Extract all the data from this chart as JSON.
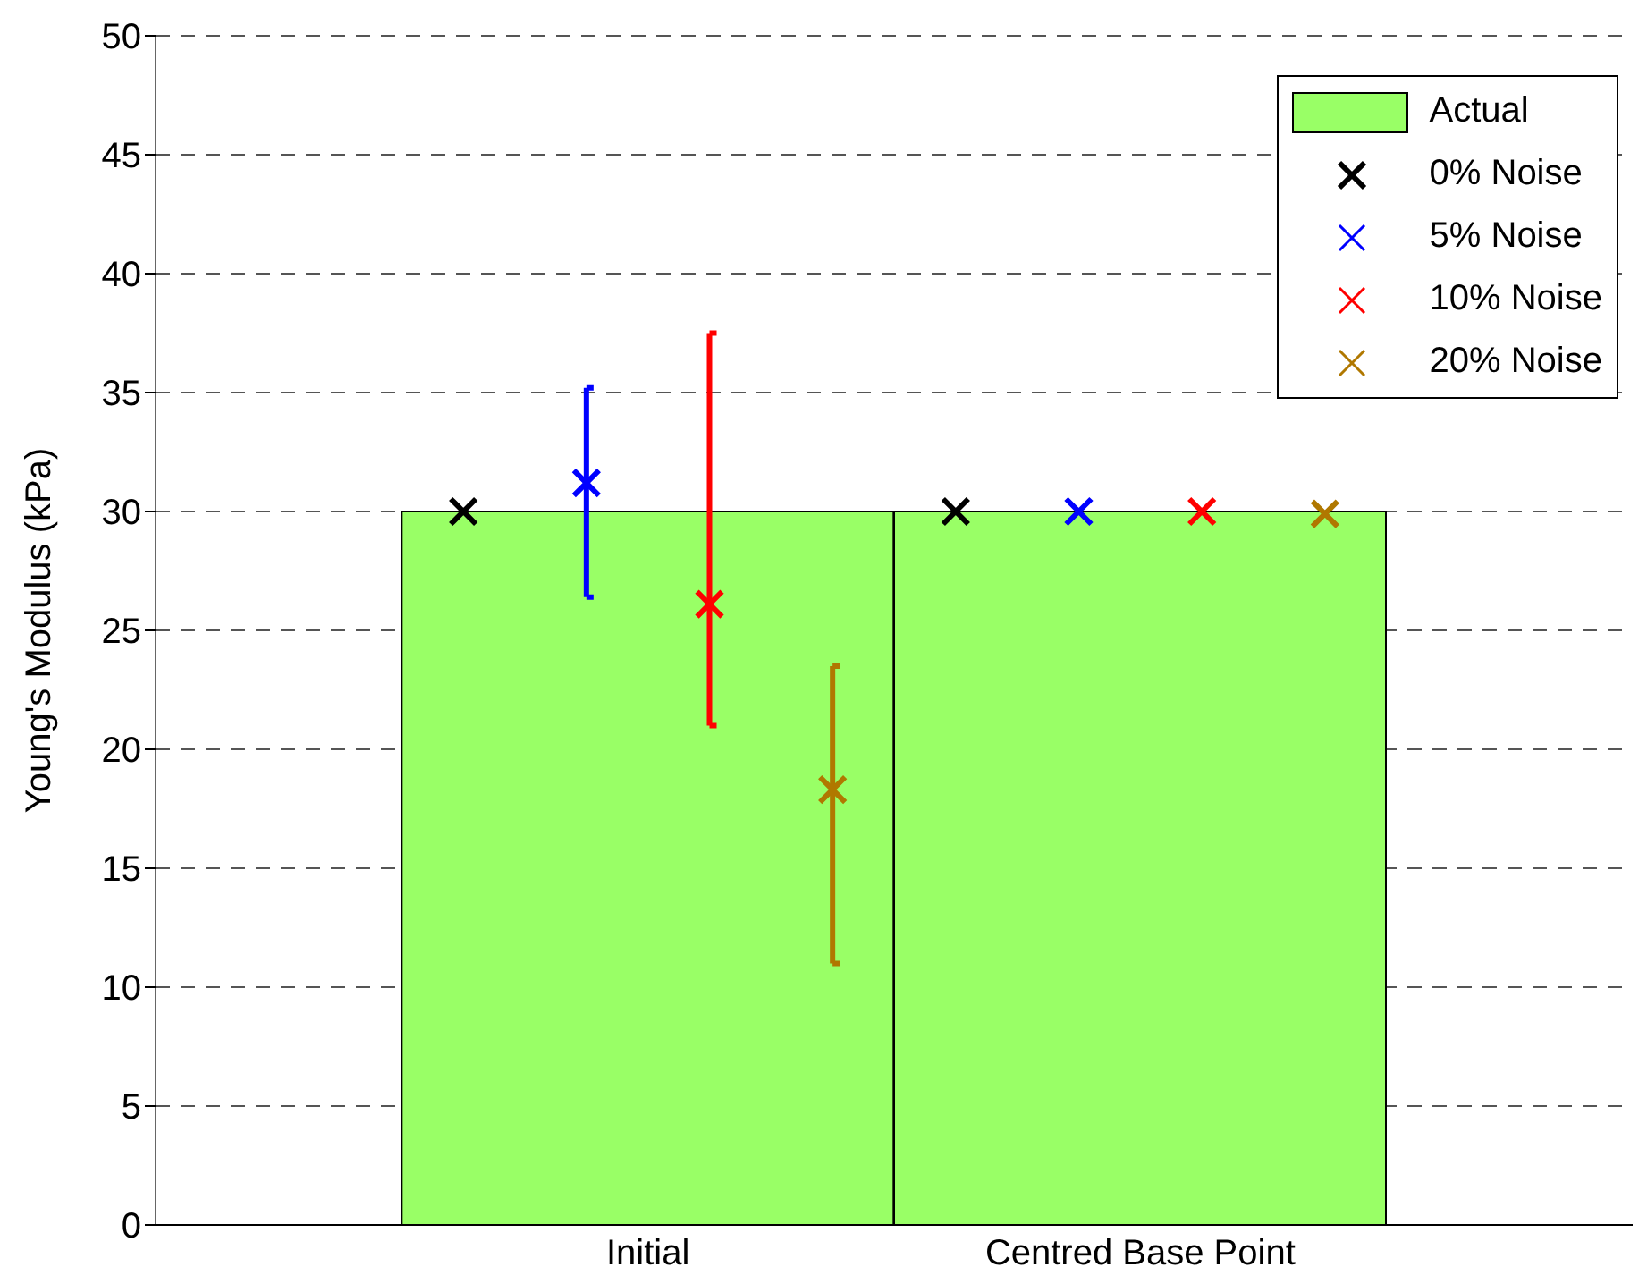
{
  "chart_data": {
    "type": "bar",
    "ylabel": "Young's Modulus (kPa)",
    "categories": [
      "Initial",
      "Centred Base Point"
    ],
    "series": [
      {
        "name": "Actual",
        "type": "bar",
        "color": "#99ff66",
        "values": [
          30,
          30
        ]
      },
      {
        "name": "0% Noise",
        "type": "scatter",
        "color": "#000000",
        "x": [
          "Initial",
          "Centred Base Point"
        ],
        "values": [
          30,
          30
        ]
      },
      {
        "name": "5% Noise",
        "type": "scatter",
        "color": "#0000ff",
        "x": [
          "Initial",
          "Centred Base Point"
        ],
        "values": [
          31.2,
          30
        ],
        "errors": [
          [
            26.4,
            35.2
          ],
          null
        ]
      },
      {
        "name": "10% Noise",
        "type": "scatter",
        "color": "#ff0000",
        "x": [
          "Initial",
          "Centred Base Point"
        ],
        "values": [
          26.1,
          30
        ],
        "errors": [
          [
            21,
            37.5
          ],
          null
        ]
      },
      {
        "name": "20% Noise",
        "type": "scatter",
        "color": "#b07800",
        "x": [
          "Initial",
          "Centred Base Point"
        ],
        "values": [
          18.3,
          29.9
        ],
        "errors": [
          [
            11,
            23.5
          ],
          null
        ]
      }
    ],
    "ylim": [
      0,
      50
    ],
    "yticks": [
      0,
      5,
      10,
      15,
      20,
      25,
      30,
      35,
      40,
      45,
      50
    ],
    "grid": "y",
    "legend": "top right",
    "marker": "cross"
  }
}
